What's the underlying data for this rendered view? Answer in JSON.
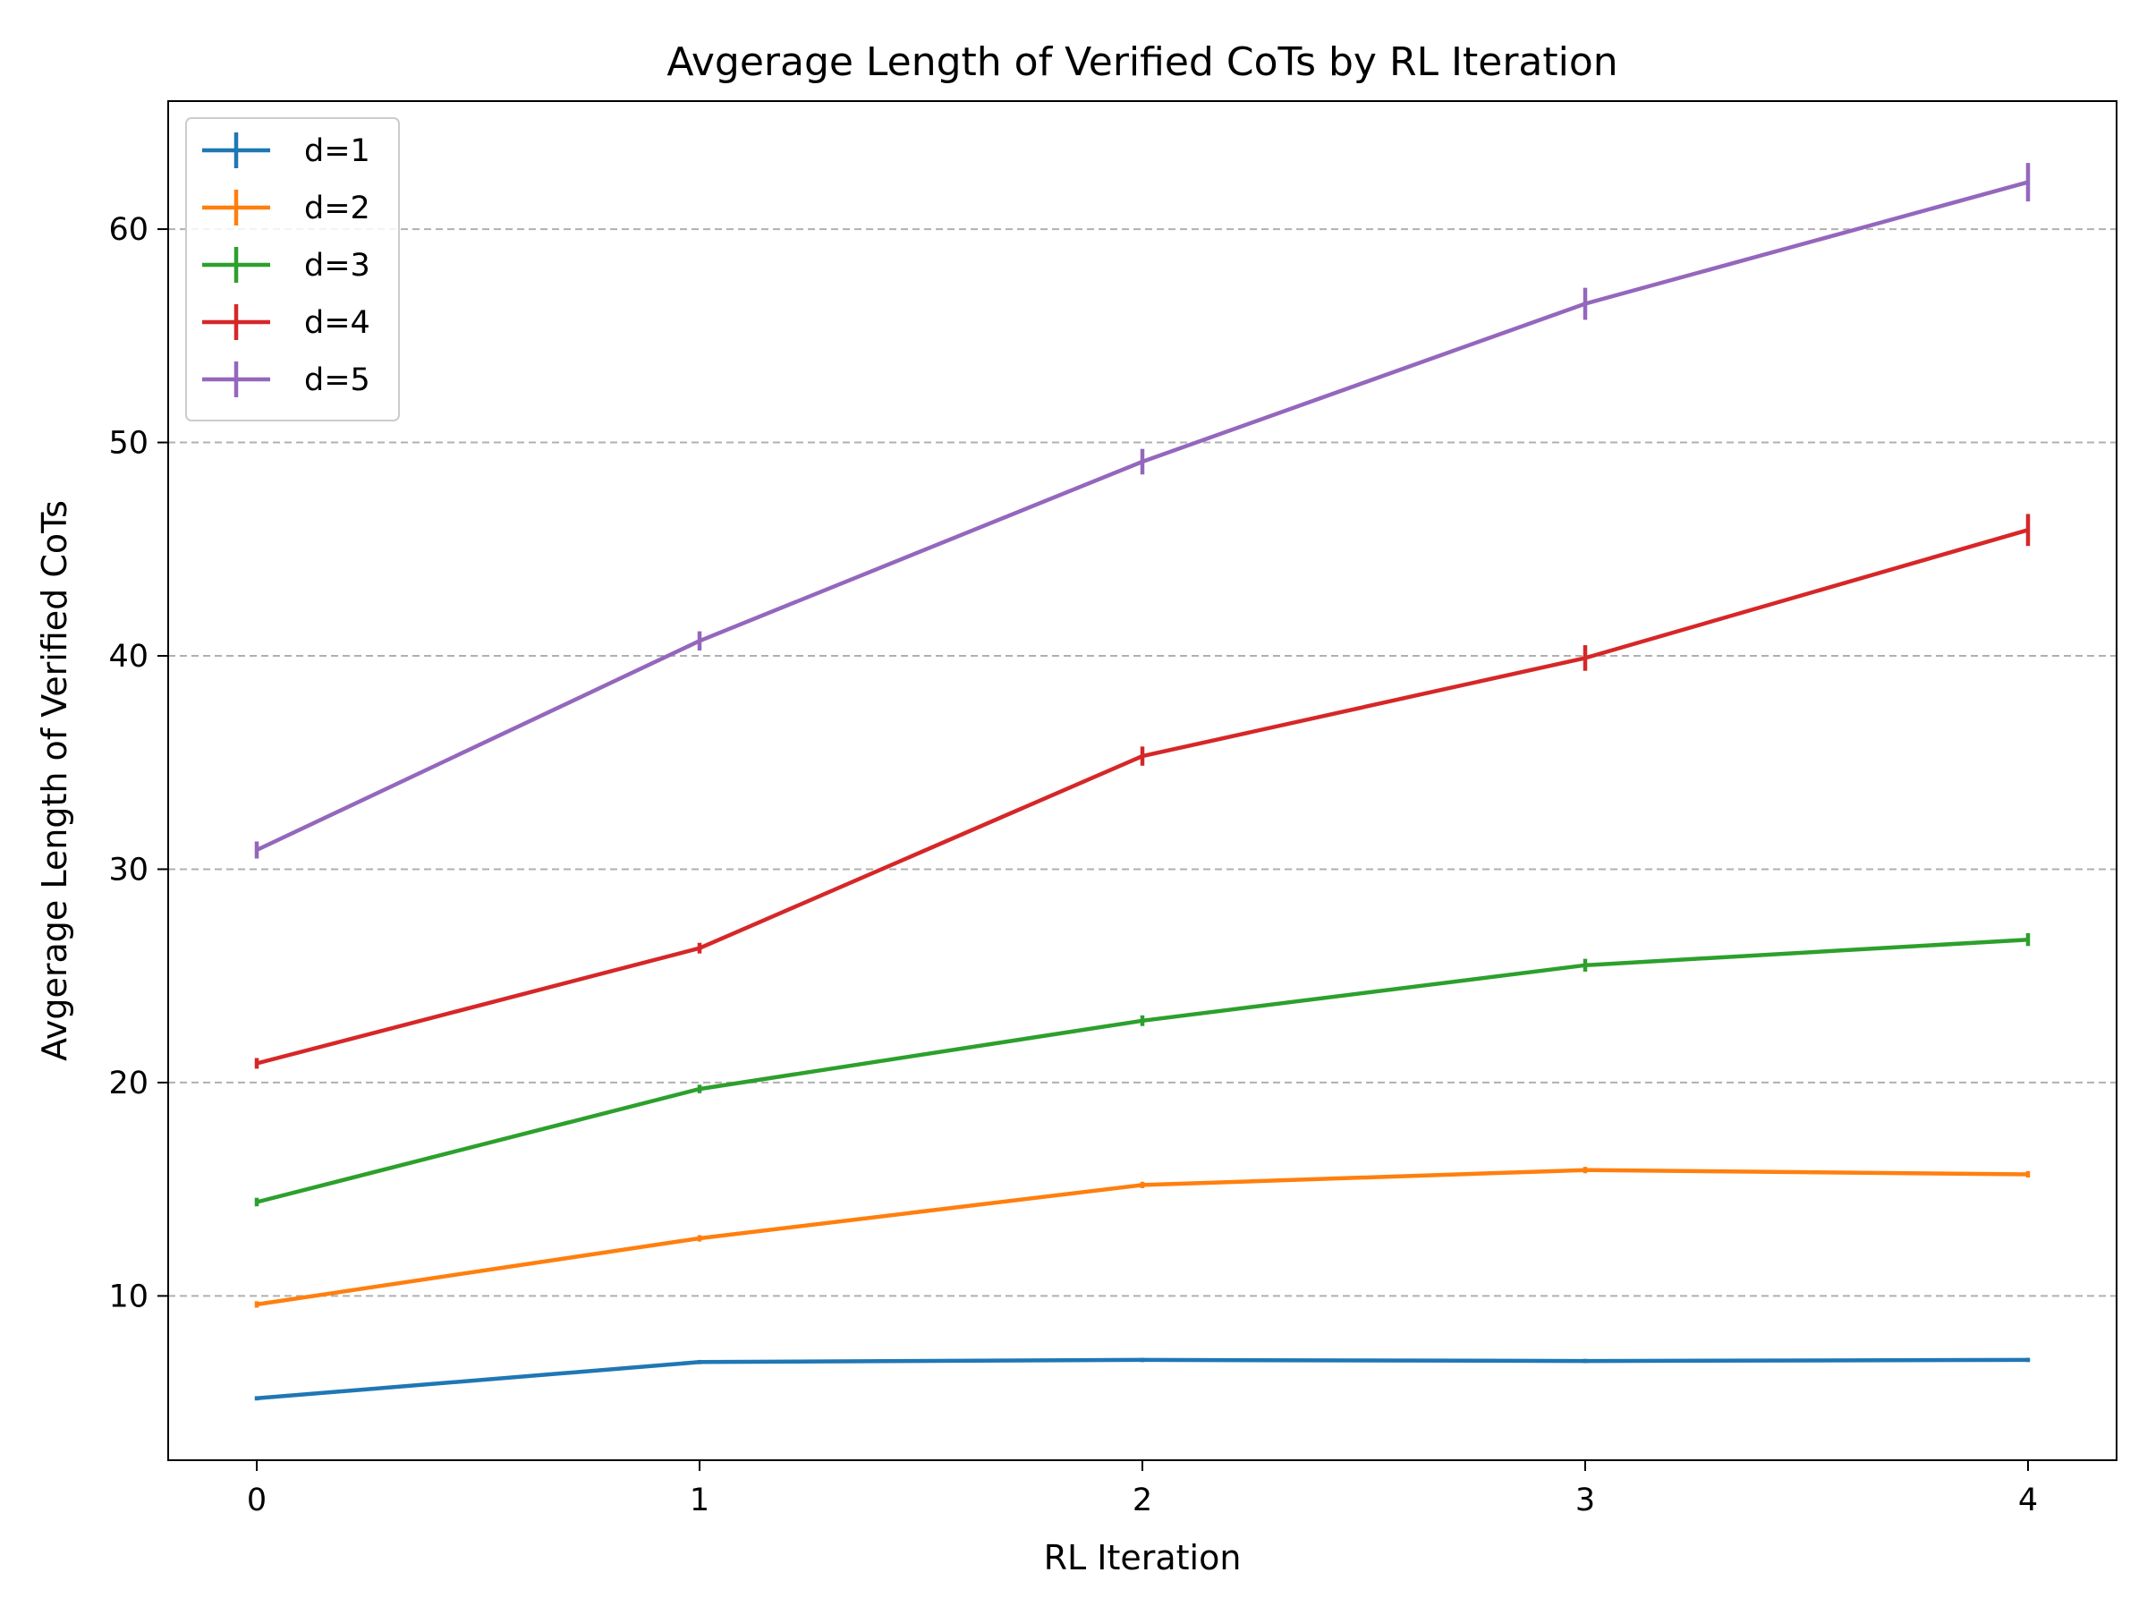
{
  "chart_data": {
    "type": "line",
    "title": "Avgerage Length of Verified CoTs by RL Iteration",
    "xlabel": "RL Iteration",
    "ylabel": "Avgerage Length of Verified CoTs",
    "x": [
      0,
      1,
      2,
      3,
      4
    ],
    "xlim": [
      -0.2,
      4.2
    ],
    "ylim": [
      2.3,
      66
    ],
    "xticks": [
      "0",
      "1",
      "2",
      "3",
      "4"
    ],
    "yticks": [
      "10",
      "20",
      "30",
      "40",
      "50",
      "60"
    ],
    "grid": "horizontal dashed",
    "legend": "top-left",
    "error_bars": true,
    "series": [
      {
        "name": "d=1",
        "color": "#1f77b4",
        "values": [
          5.2,
          6.9,
          7.0,
          6.95,
          7.0
        ],
        "errors": [
          0.1,
          0.1,
          0.1,
          0.1,
          0.1
        ]
      },
      {
        "name": "d=2",
        "color": "#ff7f0e",
        "values": [
          9.6,
          12.7,
          15.2,
          15.9,
          15.7
        ],
        "errors": [
          0.15,
          0.15,
          0.15,
          0.15,
          0.15
        ]
      },
      {
        "name": "d=3",
        "color": "#2ca02c",
        "values": [
          14.4,
          19.7,
          22.9,
          25.5,
          26.7
        ],
        "errors": [
          0.2,
          0.2,
          0.25,
          0.3,
          0.3
        ]
      },
      {
        "name": "d=4",
        "color": "#d62728",
        "values": [
          20.9,
          26.3,
          35.3,
          39.9,
          45.9
        ],
        "errors": [
          0.25,
          0.25,
          0.45,
          0.6,
          0.75
        ]
      },
      {
        "name": "d=5",
        "color": "#9467bd",
        "values": [
          30.9,
          40.7,
          49.1,
          56.5,
          62.2
        ],
        "errors": [
          0.4,
          0.45,
          0.6,
          0.75,
          0.9
        ]
      }
    ]
  }
}
